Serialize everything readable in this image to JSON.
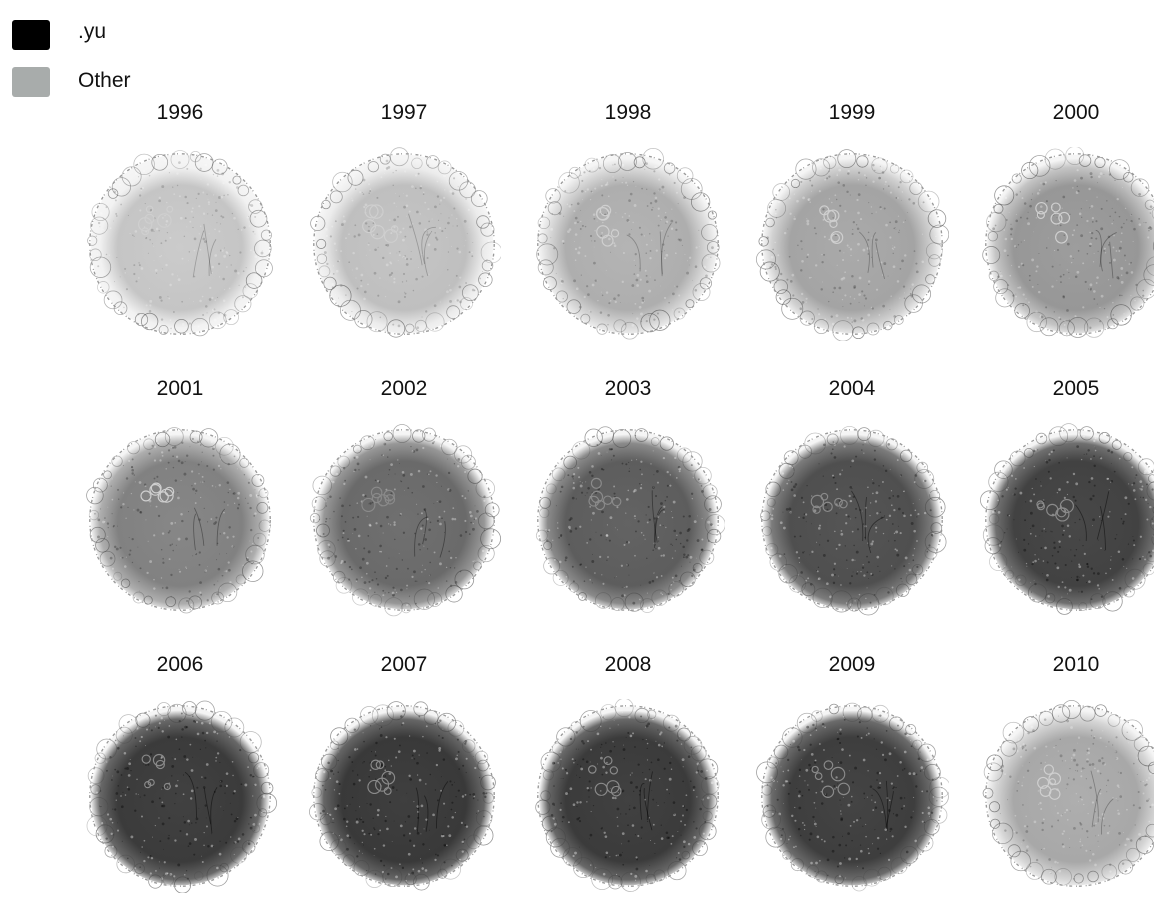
{
  "legend": {
    "items": [
      {
        "label": ".yu",
        "color": "#000000"
      },
      {
        "label": "Other",
        "color": "#a8acab"
      }
    ]
  },
  "panels": [
    {
      "year": "1996",
      "share": 0.05
    },
    {
      "year": "1997",
      "share": 0.08
    },
    {
      "year": "1998",
      "share": 0.18
    },
    {
      "year": "1999",
      "share": 0.24
    },
    {
      "year": "2000",
      "share": 0.32
    },
    {
      "year": "2001",
      "share": 0.45
    },
    {
      "year": "2002",
      "share": 0.58
    },
    {
      "year": "2003",
      "share": 0.66
    },
    {
      "year": "2004",
      "share": 0.74
    },
    {
      "year": "2005",
      "share": 0.82
    },
    {
      "year": "2006",
      "share": 0.86
    },
    {
      "year": "2007",
      "share": 0.87
    },
    {
      "year": "2008",
      "share": 0.86
    },
    {
      "year": "2009",
      "share": 0.84
    },
    {
      "year": "2010",
      "share": 0.22
    }
  ]
}
